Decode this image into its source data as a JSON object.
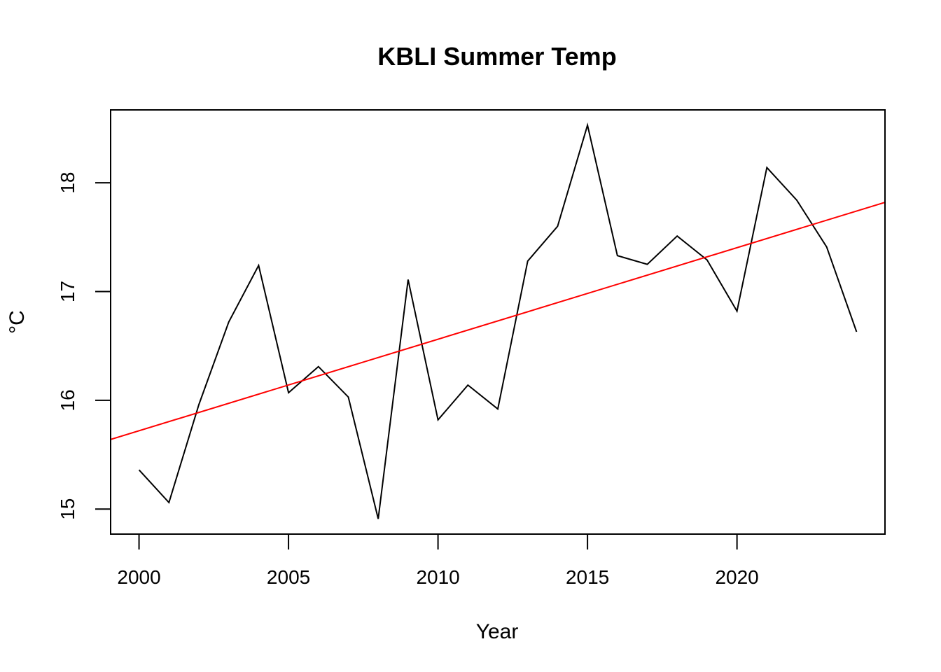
{
  "chart_data": {
    "type": "line",
    "title": "KBLI Summer Temp",
    "xlabel": "Year",
    "ylabel": "°C",
    "xlim": [
      1999.05,
      2024.95
    ],
    "ylim": [
      14.77,
      18.67
    ],
    "x_ticks": [
      2000,
      2005,
      2010,
      2015,
      2020
    ],
    "y_ticks": [
      15,
      16,
      17,
      18
    ],
    "grid": false,
    "legend": "none",
    "series": [
      {
        "color": "#000000",
        "x": [
          2000,
          2001,
          2002,
          2003,
          2004,
          2005,
          2006,
          2007,
          2008,
          2009,
          2010,
          2011,
          2012,
          2013,
          2014,
          2015,
          2016,
          2017,
          2018,
          2019,
          2020,
          2021,
          2022,
          2023,
          2024
        ],
        "values": [
          15.36,
          15.06,
          15.96,
          16.72,
          17.24,
          16.07,
          16.31,
          16.03,
          14.91,
          17.11,
          15.82,
          16.14,
          15.92,
          17.28,
          17.6,
          18.53,
          17.33,
          17.25,
          17.51,
          17.29,
          16.82,
          18.14,
          17.84,
          17.41,
          16.63
        ]
      }
    ],
    "trend": {
      "color": "#ff0000",
      "x": [
        1999.05,
        2024.95
      ],
      "values": [
        15.64,
        17.82
      ]
    }
  }
}
